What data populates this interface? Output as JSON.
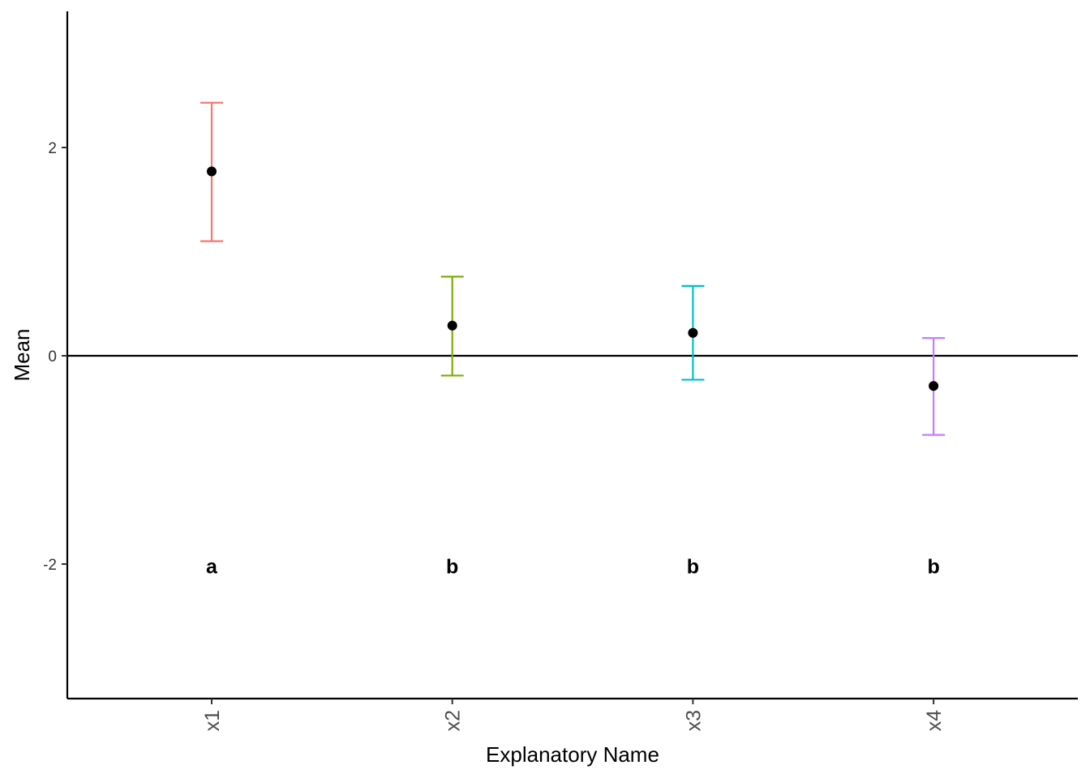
{
  "chart_data": {
    "type": "scatter",
    "title": "",
    "xlabel": "Explanatory Name",
    "ylabel": "Mean",
    "ylim": [
      -3.3,
      3.3
    ],
    "yticks": [
      -2,
      0,
      2
    ],
    "ytick_labels": [
      "-2",
      "0",
      "2"
    ],
    "categories": [
      "x1",
      "x2",
      "x3",
      "x4"
    ],
    "means": [
      1.77,
      0.29,
      0.22,
      -0.29
    ],
    "lower": [
      1.1,
      -0.19,
      -0.23,
      -0.76
    ],
    "upper": [
      2.43,
      0.76,
      0.67,
      0.17
    ],
    "letters": [
      "a",
      "b",
      "b",
      "b"
    ],
    "letter_y": -2.02,
    "reference_line_y": 0,
    "grid": false,
    "legend": "none",
    "colors": [
      "#F8766D",
      "#7CAE00",
      "#00BFC4",
      "#C77CFF"
    ],
    "point_color": "#000000"
  }
}
